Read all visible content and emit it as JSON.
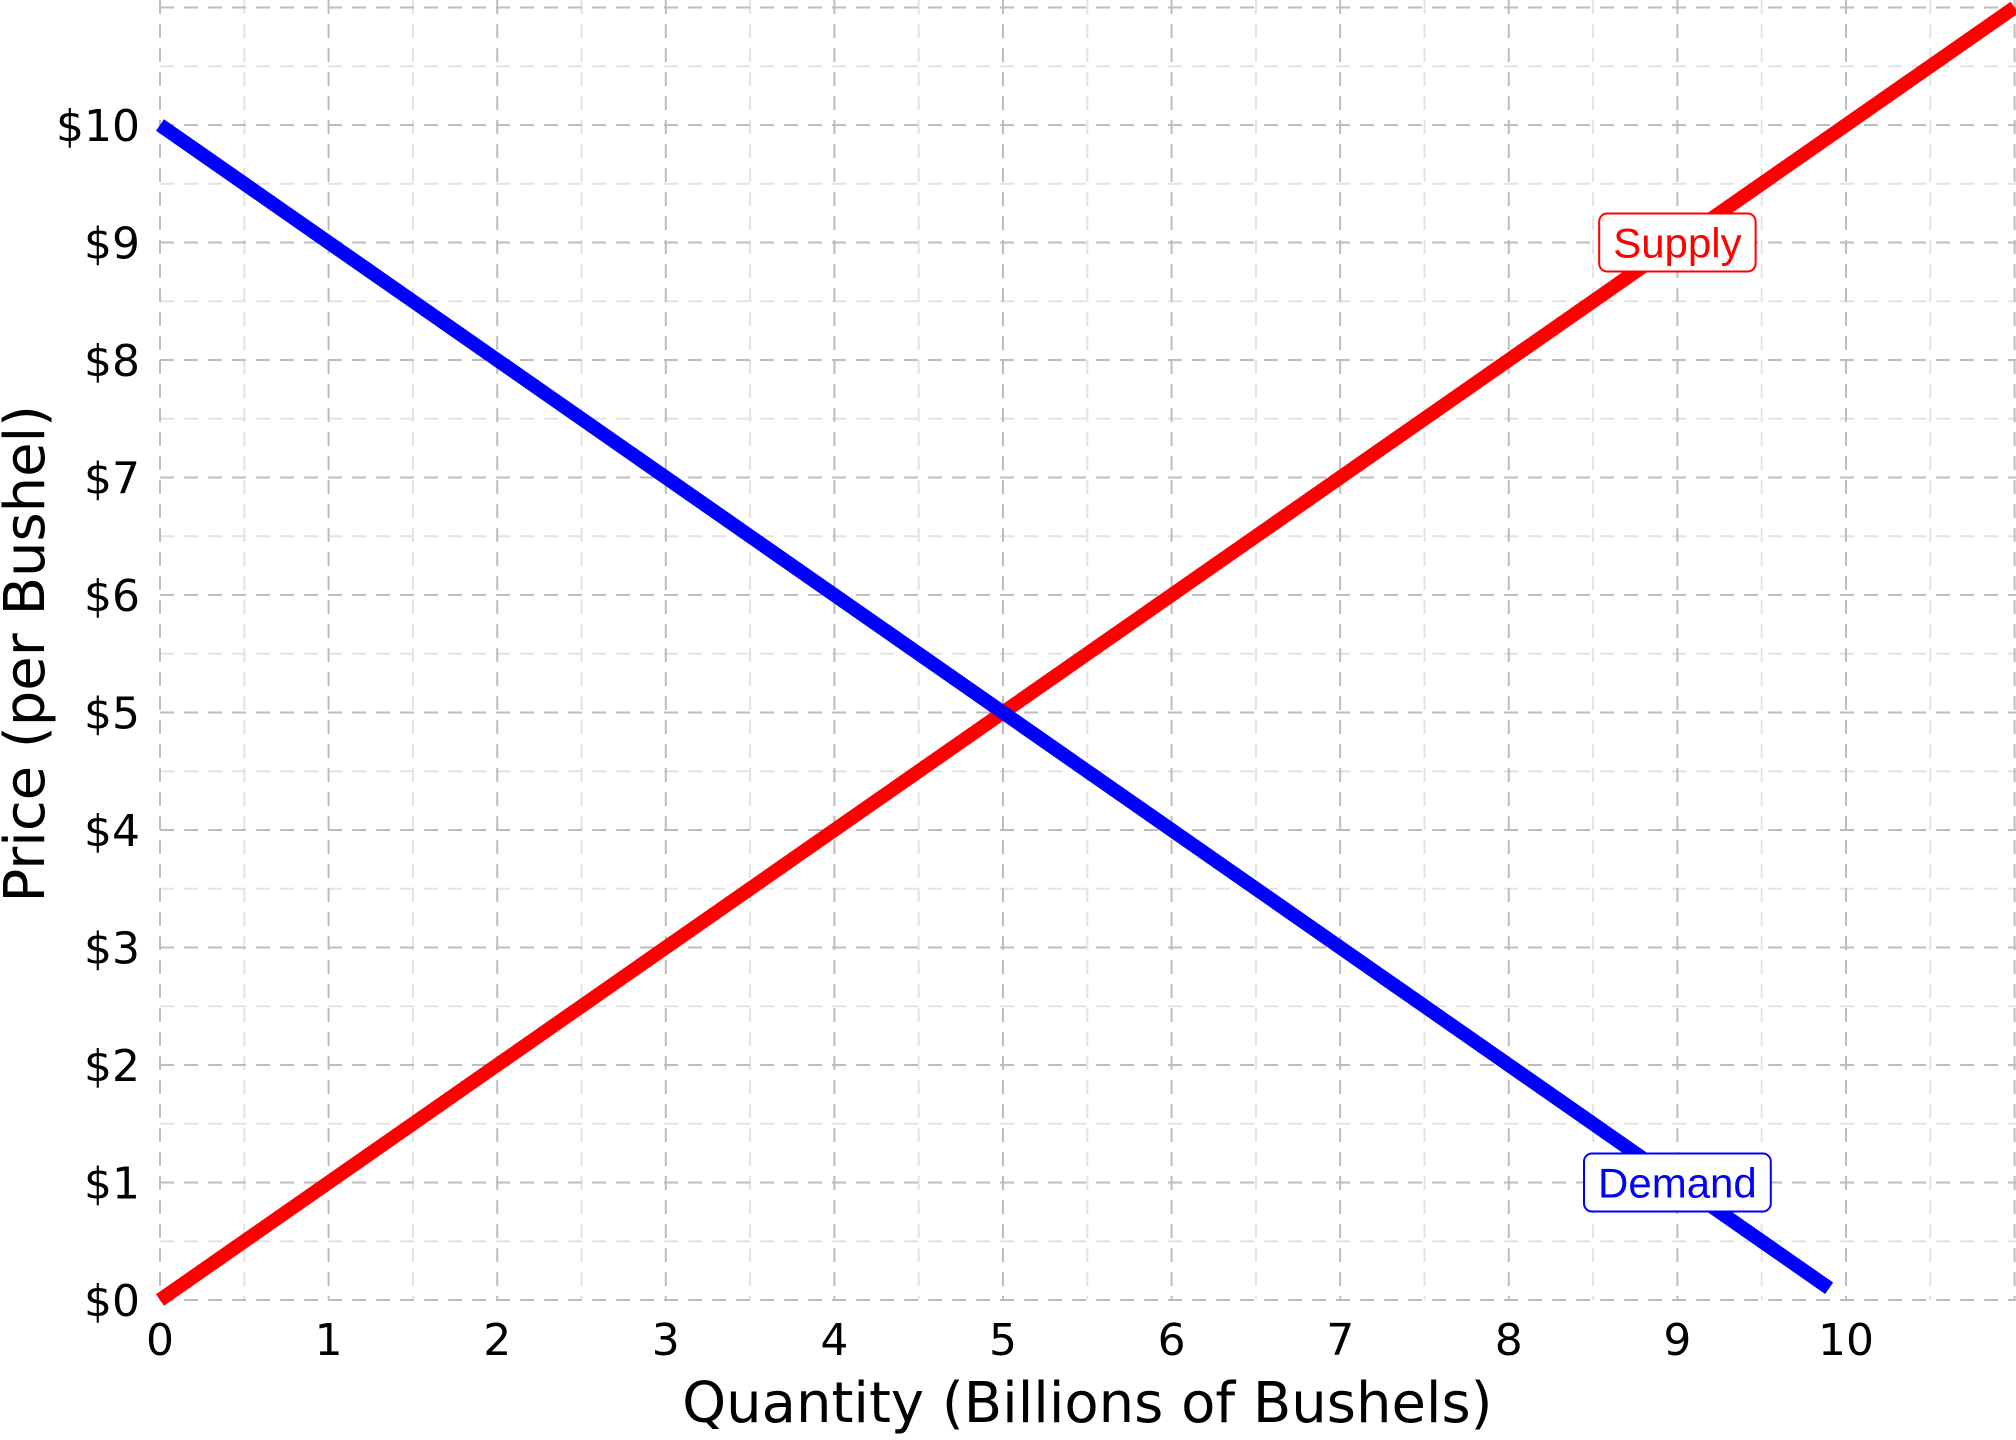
{
  "chart_data": {
    "type": "line",
    "title": "",
    "xlabel": "Quantity (Billions of Bushels)",
    "ylabel": "Price (per Bushel)",
    "xlim": [
      0,
      11
    ],
    "ylim": [
      0,
      11
    ],
    "x_ticks": [
      "0",
      "1",
      "2",
      "3",
      "4",
      "5",
      "6",
      "7",
      "8",
      "9",
      "10"
    ],
    "y_ticks": [
      "$0",
      "$1",
      "$2",
      "$3",
      "$4",
      "$5",
      "$6",
      "$7",
      "$8",
      "$9",
      "$10"
    ],
    "grid": true,
    "legend": "none",
    "series": [
      {
        "name": "Supply",
        "color": "#ff0000",
        "points": [
          [
            0,
            0
          ],
          [
            11,
            11
          ]
        ],
        "label_at": [
          9,
          9
        ]
      },
      {
        "name": "Demand",
        "color": "#0000ff",
        "points": [
          [
            0,
            10
          ],
          [
            9.9,
            0.1
          ]
        ],
        "label_at": [
          9,
          1
        ]
      }
    ]
  }
}
